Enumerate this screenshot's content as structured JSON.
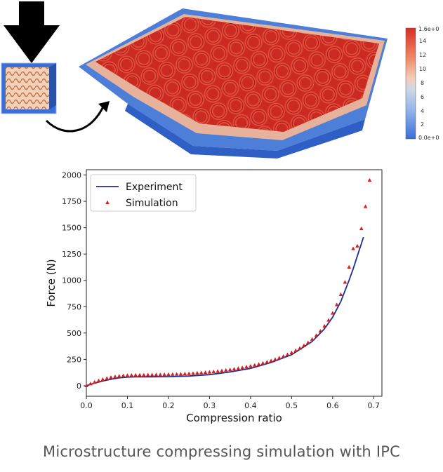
{
  "caption": "Microstructure compressing simulation with IPC",
  "colorbar": {
    "top_label": "1.6e+0",
    "bottom_label": "0.0e+0",
    "ticks": [
      "14",
      "12",
      "10",
      "8",
      "6",
      "4",
      "2"
    ],
    "colors": [
      "#d62f26",
      "#f08060",
      "#f4cdb6",
      "#cfd8e8",
      "#8fb3e8",
      "#3a6fd8"
    ]
  },
  "chart_data": {
    "type": "line",
    "xlabel": "Compression ratio",
    "ylabel": "Force (N)",
    "xlim": [
      0.0,
      0.72
    ],
    "ylim": [
      -100,
      2050
    ],
    "xticks": [
      "0.0",
      "0.1",
      "0.2",
      "0.3",
      "0.4",
      "0.5",
      "0.6",
      "0.7"
    ],
    "yticks": [
      "0",
      "250",
      "500",
      "750",
      "1000",
      "1250",
      "1500",
      "1750",
      "2000"
    ],
    "legend_position": "top-left",
    "grid": false,
    "series": [
      {
        "name": "Experiment",
        "style": "line",
        "color": "#1f2d8f",
        "x": [
          0.0,
          0.02,
          0.04,
          0.06,
          0.08,
          0.1,
          0.12,
          0.15,
          0.2,
          0.25,
          0.3,
          0.35,
          0.4,
          0.45,
          0.5,
          0.55,
          0.58,
          0.6,
          0.62,
          0.64,
          0.65,
          0.66,
          0.67,
          0.675
        ],
        "y": [
          0,
          25,
          45,
          62,
          75,
          82,
          84,
          84,
          86,
          92,
          105,
          130,
          165,
          220,
          295,
          420,
          540,
          650,
          800,
          1000,
          1110,
          1230,
          1350,
          1410
        ]
      },
      {
        "name": "Simulation",
        "style": "markers",
        "marker": "triangle",
        "color": "#d62020",
        "x": [
          0.0,
          0.01,
          0.02,
          0.03,
          0.04,
          0.05,
          0.06,
          0.07,
          0.08,
          0.09,
          0.1,
          0.11,
          0.12,
          0.13,
          0.14,
          0.15,
          0.16,
          0.17,
          0.18,
          0.19,
          0.2,
          0.21,
          0.22,
          0.23,
          0.24,
          0.25,
          0.26,
          0.27,
          0.28,
          0.29,
          0.3,
          0.31,
          0.32,
          0.33,
          0.34,
          0.35,
          0.36,
          0.37,
          0.38,
          0.39,
          0.4,
          0.41,
          0.42,
          0.43,
          0.44,
          0.45,
          0.46,
          0.47,
          0.48,
          0.49,
          0.5,
          0.51,
          0.52,
          0.53,
          0.54,
          0.55,
          0.56,
          0.57,
          0.58,
          0.59,
          0.6,
          0.61,
          0.62,
          0.63,
          0.64,
          0.65,
          0.66,
          0.67,
          0.68,
          0.69
        ],
        "y": [
          0,
          18,
          33,
          47,
          59,
          69,
          78,
          85,
          90,
          94,
          97,
          99,
          100,
          101,
          101,
          102,
          102,
          103,
          104,
          105,
          106,
          107,
          108,
          110,
          112,
          114,
          116,
          119,
          122,
          125,
          128,
          132,
          136,
          141,
          146,
          151,
          157,
          163,
          170,
          177,
          185,
          194,
          203,
          213,
          224,
          236,
          249,
          263,
          278,
          295,
          313,
          333,
          355,
          380,
          408,
          440,
          476,
          517,
          565,
          621,
          688,
          768,
          865,
          982,
          1125,
          1300,
          1325,
          1490,
          1700,
          1950
        ]
      }
    ]
  }
}
